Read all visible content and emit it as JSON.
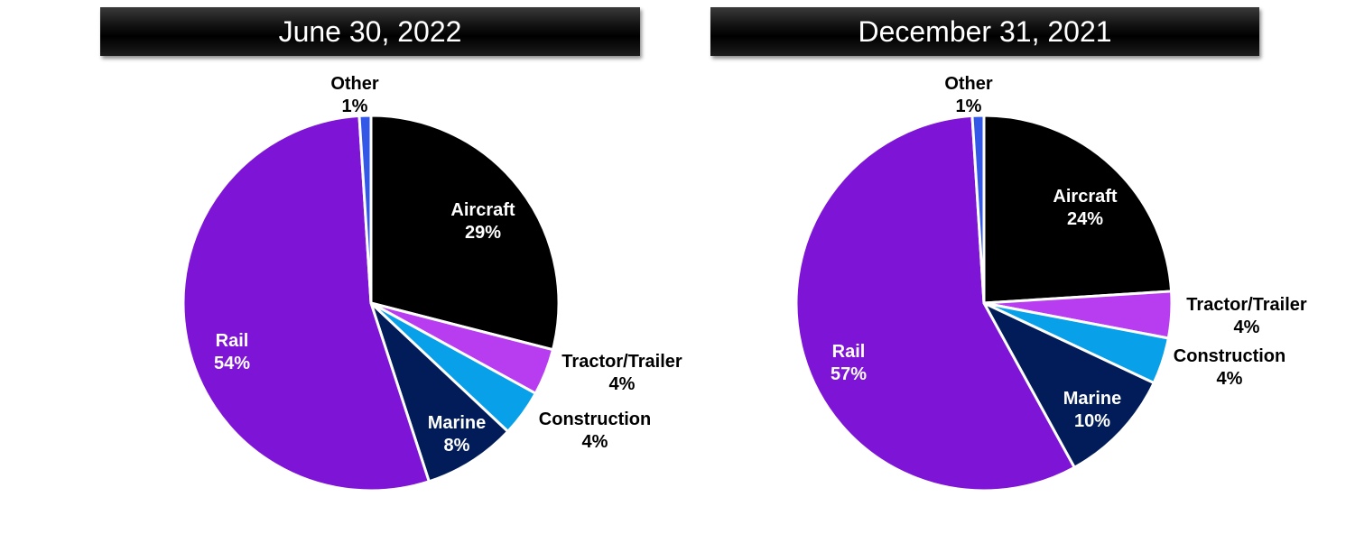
{
  "chart_data": [
    {
      "type": "pie",
      "title": "June 30, 2022",
      "slices": [
        {
          "label": "Aircraft",
          "value": 29,
          "value_label": "29%",
          "color": "#000000"
        },
        {
          "label": "Tractor/Trailer",
          "value": 4,
          "value_label": "4%",
          "color": "#b83cf0"
        },
        {
          "label": "Construction",
          "value": 4,
          "value_label": "4%",
          "color": "#08a0e8"
        },
        {
          "label": "Marine",
          "value": 8,
          "value_label": "8%",
          "color": "#011c58"
        },
        {
          "label": "Rail",
          "value": 54,
          "value_label": "54%",
          "color": "#7d14d6"
        },
        {
          "label": "Other",
          "value": 1,
          "value_label": "1%",
          "color": "#3358e8"
        }
      ]
    },
    {
      "type": "pie",
      "title": "December 31, 2021",
      "slices": [
        {
          "label": "Aircraft",
          "value": 24,
          "value_label": "24%",
          "color": "#000000"
        },
        {
          "label": "Tractor/Trailer",
          "value": 4,
          "value_label": "4%",
          "color": "#b83cf0"
        },
        {
          "label": "Construction",
          "value": 4,
          "value_label": "4%",
          "color": "#08a0e8"
        },
        {
          "label": "Marine",
          "value": 10,
          "value_label": "10%",
          "color": "#011c58"
        },
        {
          "label": "Rail",
          "value": 57,
          "value_label": "57%",
          "color": "#7d14d6"
        },
        {
          "label": "Other",
          "value": 1,
          "value_label": "1%",
          "color": "#3358e8"
        }
      ]
    }
  ]
}
